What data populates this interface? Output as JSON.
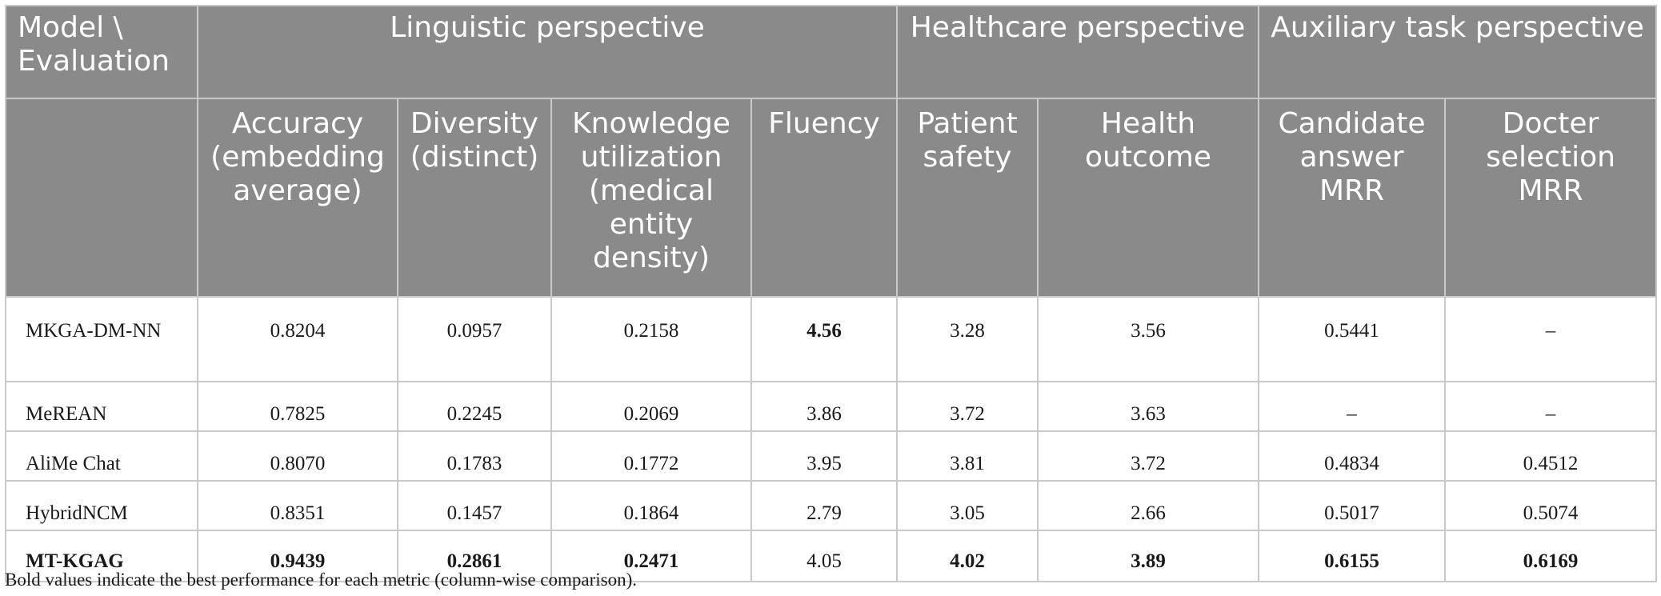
{
  "table": {
    "corner_header": "Model \\ Evaluation",
    "groups": {
      "linguistic": "Linguistic perspective",
      "healthcare": "Healthcare perspective",
      "auxiliary": "Auxiliary task perspective"
    },
    "columns": [
      "Accuracy (embedding average)",
      "Diversity (distinct)",
      "Knowledge utilization (medical entity density)",
      "Fluency",
      "Patient safety",
      "Health outcome",
      "Candidate answer MRR",
      "Docter selection MRR"
    ],
    "rows": [
      {
        "model": "MKGA-DM-NN",
        "values": [
          "0.8204",
          "0.0957",
          "0.2158",
          "4.56",
          "3.28",
          "3.56",
          "0.5441",
          "–"
        ],
        "bold": [
          false,
          false,
          false,
          true,
          false,
          false,
          false,
          false
        ]
      },
      {
        "model": "MeREAN",
        "values": [
          "0.7825",
          "0.2245",
          "0.2069",
          "3.86",
          "3.72",
          "3.63",
          "–",
          "–"
        ],
        "bold": [
          false,
          false,
          false,
          false,
          false,
          false,
          false,
          false
        ]
      },
      {
        "model": "AliMe Chat",
        "values": [
          "0.8070",
          "0.1783",
          "0.1772",
          "3.95",
          "3.81",
          "3.72",
          "0.4834",
          "0.4512"
        ],
        "bold": [
          false,
          false,
          false,
          false,
          false,
          false,
          false,
          false
        ]
      },
      {
        "model": "HybridNCM",
        "values": [
          "0.8351",
          "0.1457",
          "0.1864",
          "2.79",
          "3.05",
          "2.66",
          "0.5017",
          "0.5074"
        ],
        "bold": [
          false,
          false,
          false,
          false,
          false,
          false,
          false,
          false
        ]
      },
      {
        "model": "MT-KGAG",
        "values": [
          "0.9439",
          "0.2861",
          "0.2471",
          "4.05",
          "4.02",
          "3.89",
          "0.6155",
          "0.6169"
        ],
        "bold": [
          true,
          true,
          true,
          false,
          true,
          true,
          true,
          true
        ]
      }
    ]
  },
  "footnote": "Bold values indicate the best performance for each metric (column-wise comparison)."
}
